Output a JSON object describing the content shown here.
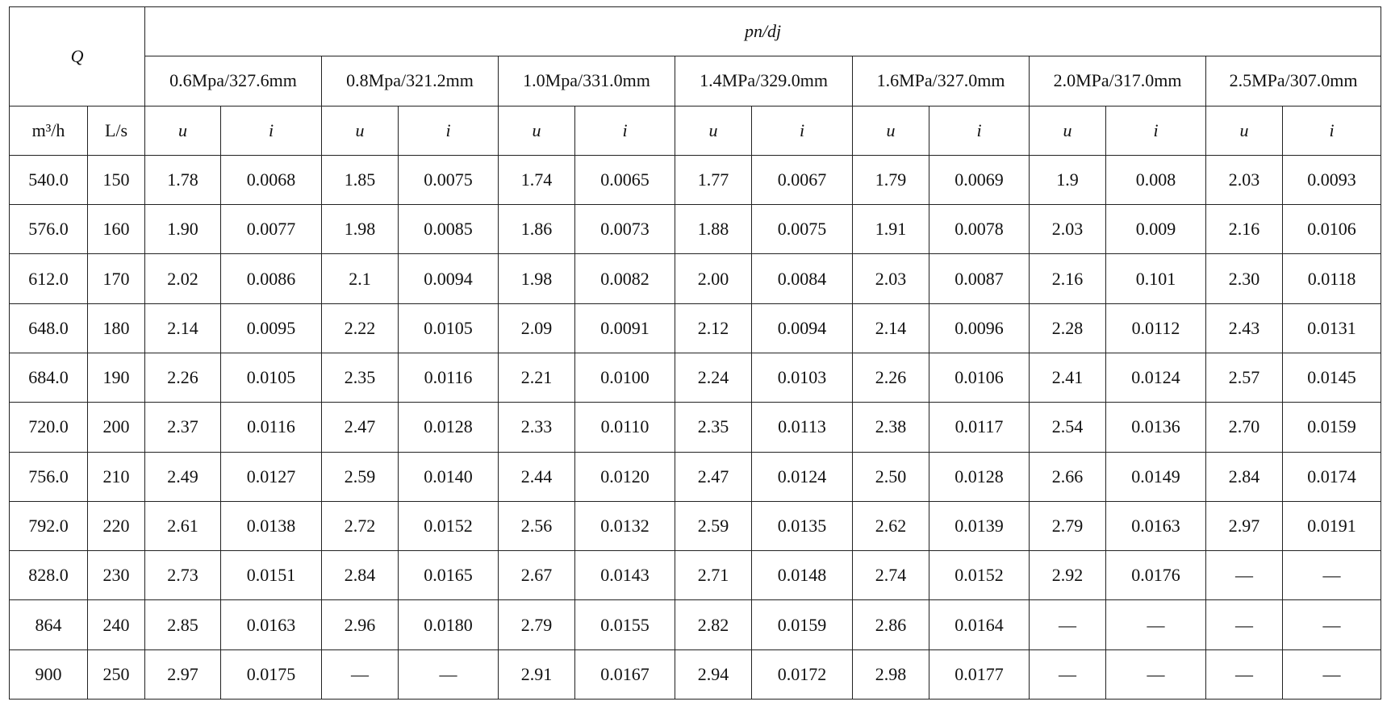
{
  "table": {
    "corner": "Q",
    "group_header": "pn/dj",
    "pressures": [
      "0.6Mpa/327.6mm",
      "0.8Mpa/321.2mm",
      "1.0Mpa/331.0mm",
      "1.4MPa/329.0mm",
      "1.6MPa/327.0mm",
      "2.0MPa/317.0mm",
      "2.5MPa/307.0mm"
    ],
    "sub_headers": [
      "m³/h",
      "L/s",
      "u",
      "i",
      "u",
      "i",
      "u",
      "i",
      "u",
      "i",
      "u",
      "i",
      "u",
      "i",
      "u",
      "i"
    ],
    "rows": [
      [
        "540.0",
        "150",
        "1.78",
        "0.0068",
        "1.85",
        "0.0075",
        "1.74",
        "0.0065",
        "1.77",
        "0.0067",
        "1.79",
        "0.0069",
        "1.9",
        "0.008",
        "2.03",
        "0.0093"
      ],
      [
        "576.0",
        "160",
        "1.90",
        "0.0077",
        "1.98",
        "0.0085",
        "1.86",
        "0.0073",
        "1.88",
        "0.0075",
        "1.91",
        "0.0078",
        "2.03",
        "0.009",
        "2.16",
        "0.0106"
      ],
      [
        "612.0",
        "170",
        "2.02",
        "0.0086",
        "2.1",
        "0.0094",
        "1.98",
        "0.0082",
        "2.00",
        "0.0084",
        "2.03",
        "0.0087",
        "2.16",
        "0.101",
        "2.30",
        "0.0118"
      ],
      [
        "648.0",
        "180",
        "2.14",
        "0.0095",
        "2.22",
        "0.0105",
        "2.09",
        "0.0091",
        "2.12",
        "0.0094",
        "2.14",
        "0.0096",
        "2.28",
        "0.0112",
        "2.43",
        "0.0131"
      ],
      [
        "684.0",
        "190",
        "2.26",
        "0.0105",
        "2.35",
        "0.0116",
        "2.21",
        "0.0100",
        "2.24",
        "0.0103",
        "2.26",
        "0.0106",
        "2.41",
        "0.0124",
        "2.57",
        "0.0145"
      ],
      [
        "720.0",
        "200",
        "2.37",
        "0.0116",
        "2.47",
        "0.0128",
        "2.33",
        "0.0110",
        "2.35",
        "0.0113",
        "2.38",
        "0.0117",
        "2.54",
        "0.0136",
        "2.70",
        "0.0159"
      ],
      [
        "756.0",
        "210",
        "2.49",
        "0.0127",
        "2.59",
        "0.0140",
        "2.44",
        "0.0120",
        "2.47",
        "0.0124",
        "2.50",
        "0.0128",
        "2.66",
        "0.0149",
        "2.84",
        "0.0174"
      ],
      [
        "792.0",
        "220",
        "2.61",
        "0.0138",
        "2.72",
        "0.0152",
        "2.56",
        "0.0132",
        "2.59",
        "0.0135",
        "2.62",
        "0.0139",
        "2.79",
        "0.0163",
        "2.97",
        "0.0191"
      ],
      [
        "828.0",
        "230",
        "2.73",
        "0.0151",
        "2.84",
        "0.0165",
        "2.67",
        "0.0143",
        "2.71",
        "0.0148",
        "2.74",
        "0.0152",
        "2.92",
        "0.0176",
        "—",
        "—"
      ],
      [
        "864",
        "240",
        "2.85",
        "0.0163",
        "2.96",
        "0.0180",
        "2.79",
        "0.0155",
        "2.82",
        "0.0159",
        "2.86",
        "0.0164",
        "—",
        "—",
        "—",
        "—"
      ],
      [
        "900",
        "250",
        "2.97",
        "0.0175",
        "—",
        "—",
        "2.91",
        "0.0167",
        "2.94",
        "0.0172",
        "2.98",
        "0.0177",
        "—",
        "—",
        "—",
        "—"
      ]
    ]
  }
}
